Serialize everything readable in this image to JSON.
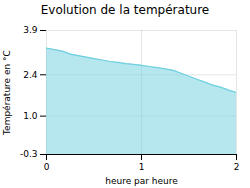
{
  "chart_data": {
    "type": "area",
    "title": "Evolution de la température",
    "xlabel": "heure par heure",
    "ylabel": "Température en °C",
    "x": [
      0.0,
      0.083,
      0.167,
      0.25,
      0.333,
      0.417,
      0.5,
      0.583,
      0.667,
      0.75,
      0.833,
      0.917,
      1.0,
      1.083,
      1.167,
      1.25,
      1.333,
      1.417,
      1.5,
      1.583,
      1.667,
      1.75,
      1.833,
      1.917,
      2.0
    ],
    "values": [
      3.3,
      3.25,
      3.2,
      3.1,
      3.05,
      3.0,
      2.95,
      2.9,
      2.85,
      2.82,
      2.78,
      2.75,
      2.72,
      2.68,
      2.64,
      2.6,
      2.55,
      2.45,
      2.35,
      2.25,
      2.15,
      2.05,
      1.98,
      1.88,
      1.8
    ],
    "baseline": -0.3,
    "color": "#6ecfdf",
    "xlim": [
      0,
      2
    ],
    "ylim": [
      -0.3,
      3.9
    ],
    "xticks": [
      0,
      1,
      2
    ],
    "yticks": [
      -0.3,
      {
        "value": 1.0,
        "label": "1.0"
      },
      2.4,
      3.9
    ],
    "grid": true
  }
}
